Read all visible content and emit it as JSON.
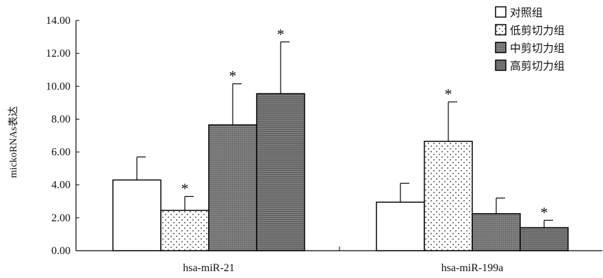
{
  "chart_data": {
    "type": "bar",
    "title": "",
    "xlabel": "",
    "ylabel": "mickoRNAs表达",
    "ylim": [
      0,
      14
    ],
    "yticks": [
      "0.00",
      "2.00",
      "4.00",
      "6.00",
      "8.00",
      "10.00",
      "12.00",
      "14.00"
    ],
    "categories": [
      "hsa-miR-21",
      "hsa-miR-199a"
    ],
    "series": [
      {
        "name": "对照组",
        "pattern": "white",
        "values": [
          4.3,
          2.95
        ],
        "errors": [
          1.4,
          1.15
        ],
        "significant": [
          false,
          false
        ]
      },
      {
        "name": "低剪切力组",
        "pattern": "dots",
        "values": [
          2.45,
          6.65
        ],
        "errors": [
          0.85,
          2.4
        ],
        "significant": [
          true,
          true
        ]
      },
      {
        "name": "中剪切力组",
        "pattern": "grid",
        "values": [
          7.65,
          2.25
        ],
        "errors": [
          2.5,
          0.95
        ],
        "significant": [
          true,
          false
        ]
      },
      {
        "name": "高剪切力组",
        "pattern": "hlines",
        "values": [
          9.55,
          1.4
        ],
        "errors": [
          3.15,
          0.45
        ],
        "significant": [
          true,
          true
        ]
      }
    ],
    "significance_marker": "*",
    "grid": false,
    "legend_position": "top-right"
  }
}
